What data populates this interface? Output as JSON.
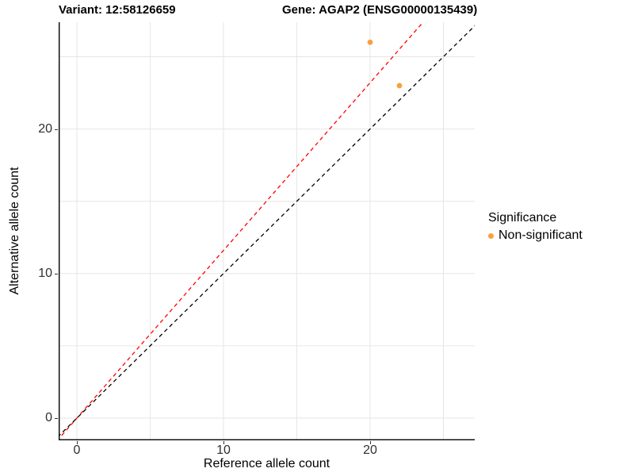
{
  "titles": {
    "variant": "Variant: 12:58126659",
    "gene": "Gene: AGAP2 (ENSG00000135439)"
  },
  "legend": {
    "title": "Significance",
    "items": [
      {
        "label": "Non-significant",
        "color": "#F8A03C"
      }
    ]
  },
  "colors": {
    "point_orange": "#F8A03C",
    "fit_line_red": "#FF0000",
    "identity_line_black": "#000000",
    "gridline_gray": "#E6E6E6",
    "axis_black": "#000000",
    "tick_text": "#303030"
  },
  "chart_data": {
    "type": "scatter",
    "title": "Variant: 12:58126659 | Gene: AGAP2 (ENSG00000135439)",
    "xlabel": "Reference allele count",
    "ylabel": "Alternative allele count",
    "xlim": [
      -1.3,
      27.4
    ],
    "ylim": [
      -1.5,
      27.4
    ],
    "x_ticks": [
      0,
      10,
      20
    ],
    "y_ticks": [
      0,
      10,
      20
    ],
    "x_grid": [
      0,
      5,
      10,
      15,
      20,
      25
    ],
    "y_grid": [
      0,
      5,
      10,
      15,
      20,
      25
    ],
    "grid": true,
    "legend_position": "right",
    "series": [
      {
        "name": "Non-significant",
        "color": "#F8A03C",
        "points": [
          [
            20,
            26
          ],
          [
            22,
            23
          ]
        ]
      }
    ],
    "lines": [
      {
        "name": "fit-line",
        "slope": 1.16,
        "intercept": 0,
        "color": "#FF0000",
        "linestyle": "dashed"
      },
      {
        "name": "identity-line",
        "slope": 1.0,
        "intercept": 0,
        "color": "#000000",
        "linestyle": "dashed"
      }
    ]
  }
}
